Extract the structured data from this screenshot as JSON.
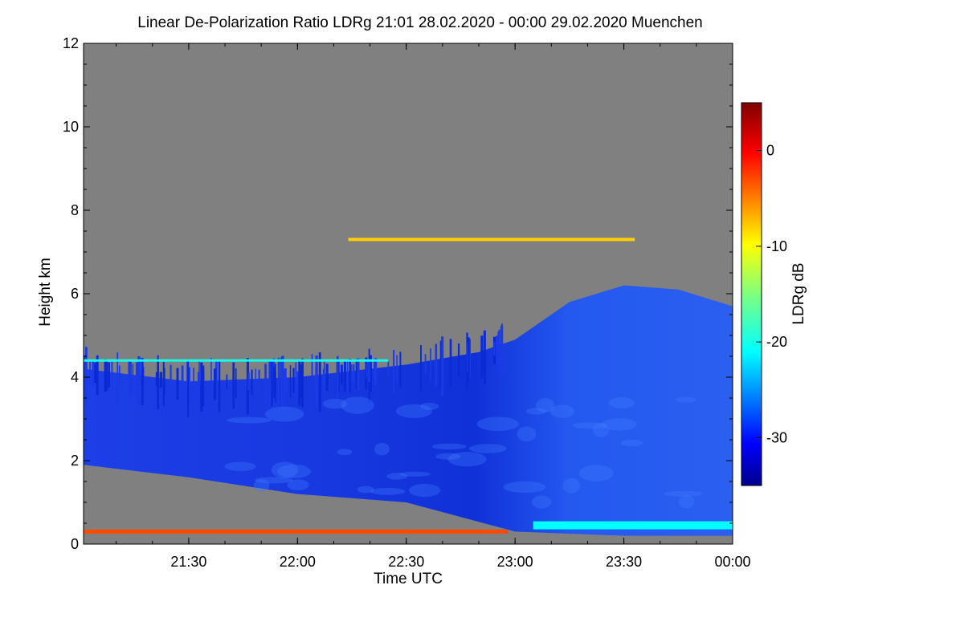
{
  "chart_data": {
    "type": "heatmap",
    "title": "Linear De-Polarization Ratio LDRg   21:01 28.02.2020 - 00:00 29.02.2020 Muenchen",
    "xlabel": "Time UTC",
    "ylabel": "Height km",
    "x_ticks": [
      "21:30",
      "22:00",
      "22:30",
      "23:00",
      "23:30",
      "00:00"
    ],
    "x_range": [
      "21:01",
      "00:00"
    ],
    "y_ticks": [
      0,
      2,
      4,
      6,
      8,
      10,
      12
    ],
    "ylim": [
      0,
      12
    ],
    "colorbar": {
      "label": "LDRg dB",
      "ticks": [
        0,
        -10,
        -20,
        -30
      ],
      "range": [
        -35,
        5
      ],
      "colormap": "jet"
    },
    "background_color": "#808080",
    "features": {
      "main_layer_top_km": [
        {
          "time": "21:01",
          "height": 4.2
        },
        {
          "time": "21:30",
          "height": 3.9
        },
        {
          "time": "22:00",
          "height": 4.0
        },
        {
          "time": "22:30",
          "height": 4.3
        },
        {
          "time": "22:50",
          "height": 4.6
        },
        {
          "time": "23:00",
          "height": 4.9
        },
        {
          "time": "23:15",
          "height": 5.8
        },
        {
          "time": "23:30",
          "height": 6.2
        },
        {
          "time": "23:45",
          "height": 6.1
        },
        {
          "time": "00:00",
          "height": 5.7
        }
      ],
      "main_layer_base_km": [
        {
          "time": "21:01",
          "height": 1.9
        },
        {
          "time": "21:30",
          "height": 1.6
        },
        {
          "time": "22:00",
          "height": 1.2
        },
        {
          "time": "22:30",
          "height": 1.0
        },
        {
          "time": "23:00",
          "height": 0.3
        },
        {
          "time": "23:30",
          "height": 0.2
        },
        {
          "time": "00:00",
          "height": 0.2
        }
      ],
      "main_layer_ldr_db": -30,
      "cirrus_streak": {
        "height_km": 7.3,
        "time_start": "22:14",
        "time_end": "23:33",
        "ldr_db": -8
      },
      "cloud_top_edge": {
        "height_km": 4.4,
        "time_start": "21:01",
        "time_end": "22:25",
        "ldr_db": -20
      },
      "low_aerosol_layer": {
        "height_km": 0.3,
        "time_start": "21:01",
        "time_end": "22:58",
        "ldr_db": -3
      },
      "surface_band": {
        "height_km": 0.45,
        "time_start": "23:05",
        "time_end": "00:00",
        "ldr_db": -21
      }
    }
  }
}
